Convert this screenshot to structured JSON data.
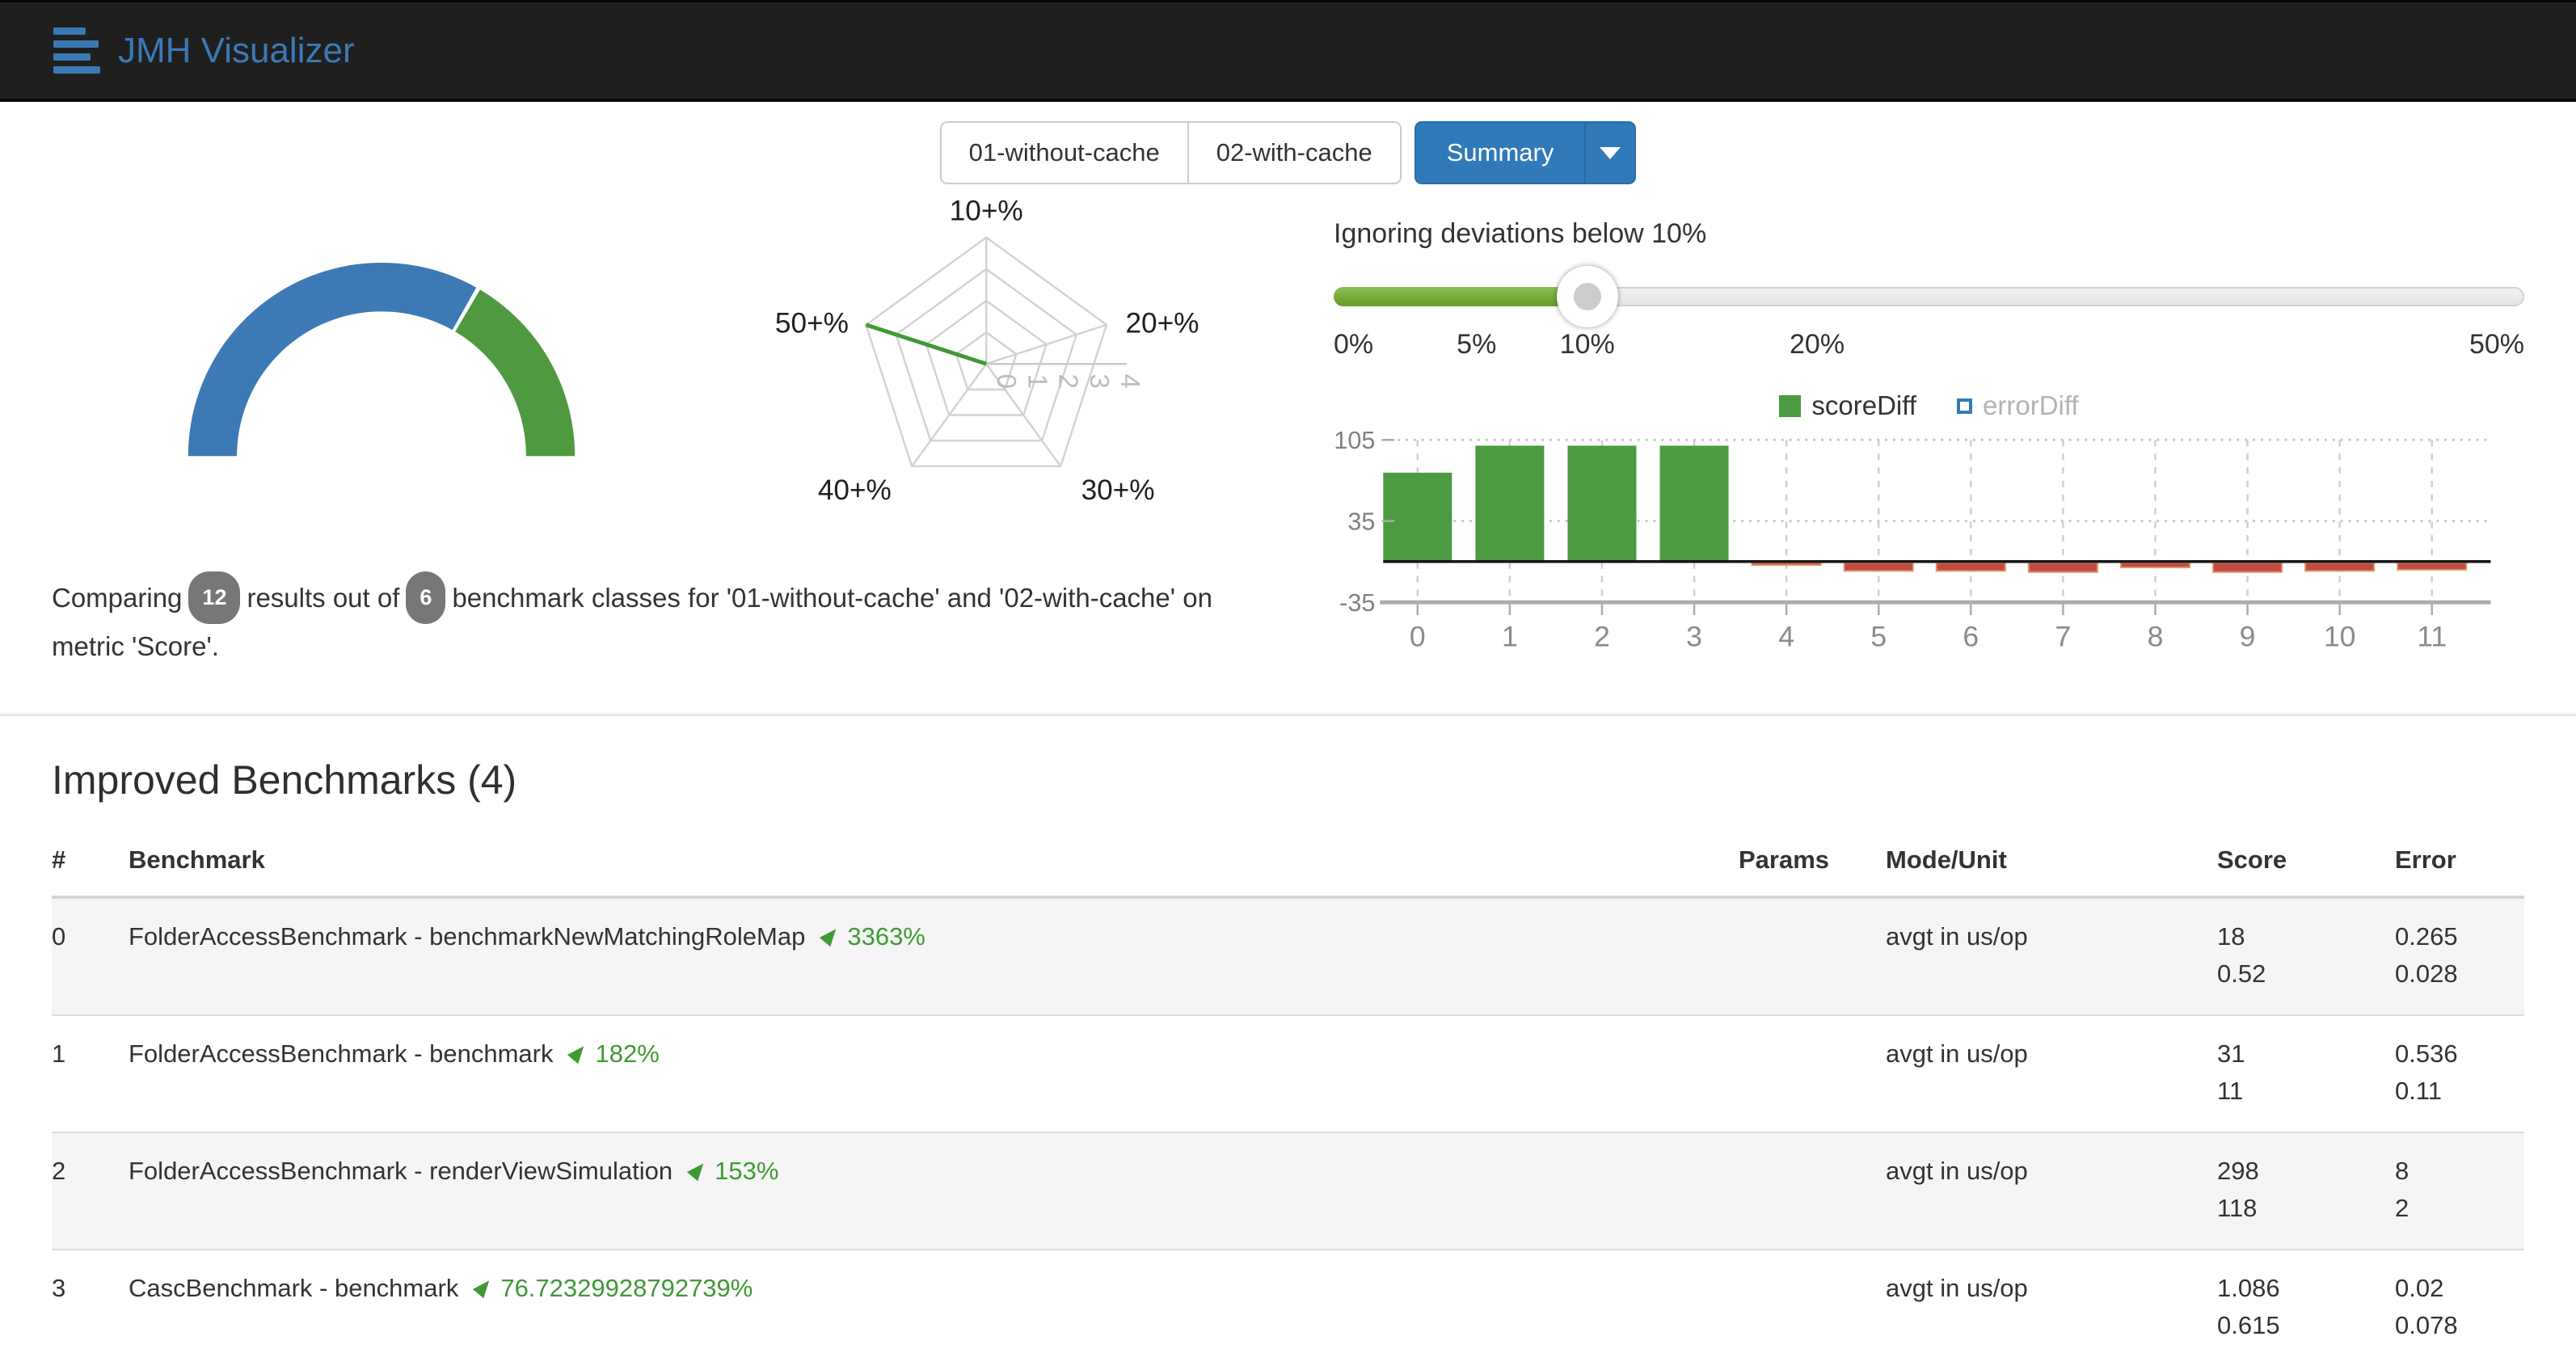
{
  "navbar": {
    "brand": "JMH Visualizer",
    "background": "#1f1f1f",
    "brand_color": "#3b79b6"
  },
  "toolbar": {
    "runs": [
      "01-without-cache",
      "02-with-cache"
    ],
    "summary": {
      "label": "Summary",
      "color": "#317ab9"
    }
  },
  "summary_line": {
    "prefix": "Comparing",
    "results_count": "12",
    "between": "results out of",
    "classes_count": "6",
    "suffix": "benchmark classes for '01-without-cache' and '02-with-cache' on metric 'Score'."
  },
  "deviation_filter": {
    "heading": "Ignoring deviations below 10%",
    "value_pct": 21.3,
    "fill_color": "#6ba32c",
    "ticks": [
      {
        "label": "0%",
        "pos": 0
      },
      {
        "label": "5%",
        "pos": 12
      },
      {
        "label": "10%",
        "pos": 21.3
      },
      {
        "label": "20%",
        "pos": 40.6
      },
      {
        "label": "50%",
        "pos": 100
      }
    ]
  },
  "chart_data": [
    {
      "type": "pie",
      "variant": "half-donut-gauge",
      "name": "results-comparison-gauge",
      "total": 12,
      "slices": [
        {
          "name": "other-results",
          "value": 8,
          "color": "#3d7ab5"
        },
        {
          "name": "improved-results",
          "value": 4,
          "color": "#4f9a41"
        }
      ]
    },
    {
      "type": "radar",
      "name": "improvement-distribution",
      "axes": [
        "10+%",
        "20+%",
        "30+%",
        "40+%",
        "50+%"
      ],
      "values": [
        0,
        0,
        0,
        0,
        4
      ],
      "ring_ticks": [
        "0",
        "1",
        "2",
        "3",
        "4"
      ],
      "max": 4,
      "line_color": "#3f9a35",
      "grid_color": "#d2d2d2"
    },
    {
      "type": "bar",
      "name": "diff-per-benchmark",
      "categories": [
        "0",
        "1",
        "2",
        "3",
        "4",
        "5",
        "6",
        "7",
        "8",
        "9",
        "10",
        "11"
      ],
      "series": [
        {
          "name": "scoreDiff",
          "color": "#4c9a41",
          "visible": true,
          "values": [
            76.72,
            100,
            100,
            100,
            -2,
            -7,
            -7,
            -8,
            -4,
            -8,
            -7,
            -6
          ]
        },
        {
          "name": "errorDiff",
          "color": "#337ab7",
          "visible": false,
          "values": []
        }
      ],
      "negative_color": "#bf4b41",
      "yticks": [
        105,
        35,
        -35
      ],
      "ylim": [
        -35,
        105
      ],
      "legend_position": "top",
      "grid": true
    }
  ],
  "improved_section": {
    "title": "Improved Benchmarks (4)",
    "headers": [
      "#",
      "Benchmark",
      "Params",
      "Mode/Unit",
      "Score",
      "Error"
    ],
    "improvement_color": "#3f9a35",
    "rows": [
      {
        "index": "0",
        "benchmark": "FolderAccessBenchmark - benchmarkNewMatchingRoleMap",
        "improvement": "3363%",
        "params": "",
        "mode_unit": "avgt in us/op",
        "score": [
          "18",
          "0.52"
        ],
        "error": [
          "0.265",
          "0.028"
        ]
      },
      {
        "index": "1",
        "benchmark": "FolderAccessBenchmark - benchmark",
        "improvement": "182%",
        "params": "",
        "mode_unit": "avgt in us/op",
        "score": [
          "31",
          "11"
        ],
        "error": [
          "0.536",
          "0.11"
        ]
      },
      {
        "index": "2",
        "benchmark": "FolderAccessBenchmark - renderViewSimulation",
        "improvement": "153%",
        "params": "",
        "mode_unit": "avgt in us/op",
        "score": [
          "298",
          "118"
        ],
        "error": [
          "8",
          "2"
        ]
      },
      {
        "index": "3",
        "benchmark": "CascBenchmark - benchmark",
        "improvement": "76.72329928792739%",
        "params": "",
        "mode_unit": "avgt in us/op",
        "score": [
          "1.086",
          "0.615"
        ],
        "error": [
          "0.02",
          "0.078"
        ]
      }
    ]
  }
}
